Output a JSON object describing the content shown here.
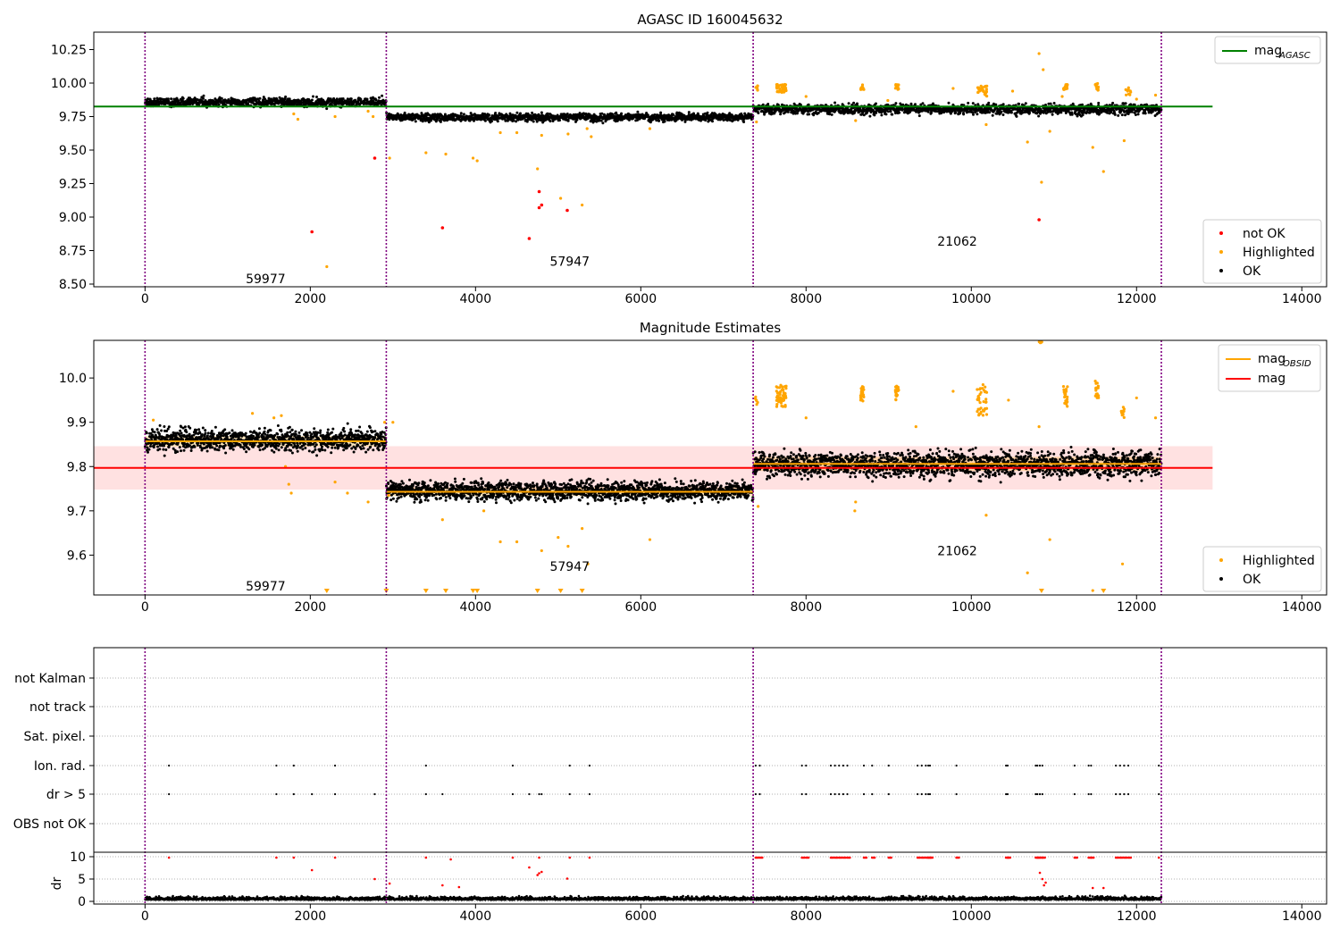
{
  "colors": {
    "ok": "#000000",
    "not_ok": "#ff0000",
    "highlighted": "#ffa500",
    "mag_agasc": "#008000",
    "mag_obsid": "#ffa500",
    "mag": "#ff0000",
    "mag_band": "#ffc8c8",
    "obsid_line": "#800080",
    "grid": "#b0b0b0"
  },
  "chart_data": [
    {
      "type": "scatter",
      "title": "AGASC ID 160045632",
      "xlim": [
        -620,
        14300
      ],
      "ylim": [
        8.48,
        10.38
      ],
      "xticks": [
        0,
        2000,
        4000,
        6000,
        8000,
        10000,
        12000,
        14000
      ],
      "yticks": [
        8.5,
        8.75,
        9.0,
        9.25,
        9.5,
        9.75,
        10.0,
        10.25
      ],
      "ytick_labels": [
        "8.50",
        "8.75",
        "9.00",
        "9.25",
        "9.50",
        "9.75",
        "10.00",
        "10.25"
      ],
      "obsid_boundaries": [
        0,
        2920,
        7360,
        12300
      ],
      "obsid_labels": [
        {
          "text": "59977",
          "x": 1460,
          "y": 8.54
        },
        {
          "text": "57947",
          "x": 5140,
          "y": 8.67
        },
        {
          "text": "21062",
          "x": 9830,
          "y": 8.82
        }
      ],
      "mag_agasc": 9.825,
      "mag_agasc_x": [
        -620,
        12920
      ],
      "legend_upper": [
        {
          "label": "mag",
          "sub": "AGASC",
          "kind": "line",
          "color": "#008000"
        }
      ],
      "legend_lower": [
        {
          "label": "not OK",
          "kind": "dot",
          "color": "#ff0000"
        },
        {
          "label": "Highlighted",
          "kind": "dot",
          "color": "#ffa500"
        },
        {
          "label": "OK",
          "kind": "dot",
          "color": "#000000"
        }
      ],
      "ok_segments": [
        {
          "x0": 0,
          "x1": 2920,
          "mean": 9.857,
          "spread": 0.045
        },
        {
          "x0": 2920,
          "x1": 7360,
          "mean": 9.745,
          "spread": 0.04
        },
        {
          "x0": 7360,
          "x1": 12300,
          "mean": 9.805,
          "spread": 0.055
        }
      ],
      "highlighted_points": [
        [
          1800,
          9.77
        ],
        [
          1850,
          9.73
        ],
        [
          2300,
          9.75
        ],
        [
          2700,
          9.79
        ],
        [
          2760,
          9.75
        ],
        [
          2960,
          9.44
        ],
        [
          3400,
          9.48
        ],
        [
          3640,
          9.47
        ],
        [
          3970,
          9.44
        ],
        [
          4020,
          9.42
        ],
        [
          4300,
          9.63
        ],
        [
          4500,
          9.63
        ],
        [
          4750,
          9.36
        ],
        [
          4800,
          9.61
        ],
        [
          5030,
          9.14
        ],
        [
          5120,
          9.62
        ],
        [
          5290,
          9.09
        ],
        [
          5350,
          9.66
        ],
        [
          5400,
          9.6
        ],
        [
          2200,
          8.63
        ],
        [
          6110,
          9.66
        ],
        [
          7400,
          9.71
        ],
        [
          8600,
          9.72
        ],
        [
          8000,
          9.9
        ],
        [
          8990,
          9.87
        ],
        [
          10180,
          9.69
        ],
        [
          10500,
          9.94
        ],
        [
          10680,
          9.56
        ],
        [
          10850,
          9.26
        ],
        [
          10950,
          9.64
        ],
        [
          11470,
          9.52
        ],
        [
          11600,
          9.34
        ],
        [
          11850,
          9.57
        ],
        [
          12230,
          9.91
        ],
        [
          10820,
          10.22
        ],
        [
          10870,
          10.1
        ],
        [
          12000,
          9.88
        ],
        [
          11100,
          9.9
        ],
        [
          9780,
          9.96
        ]
      ],
      "highlighted_clusters": [
        {
          "x": 7700,
          "y": 9.96,
          "n": 40,
          "dx": 60,
          "dy": 0.03
        },
        {
          "x": 8680,
          "y": 9.97,
          "n": 18,
          "dx": 20,
          "dy": 0.02
        },
        {
          "x": 9100,
          "y": 9.97,
          "n": 18,
          "dx": 20,
          "dy": 0.02
        },
        {
          "x": 10130,
          "y": 9.94,
          "n": 30,
          "dx": 60,
          "dy": 0.04
        },
        {
          "x": 11140,
          "y": 9.97,
          "n": 20,
          "dx": 25,
          "dy": 0.02
        },
        {
          "x": 11520,
          "y": 9.97,
          "n": 14,
          "dx": 20,
          "dy": 0.03
        },
        {
          "x": 11900,
          "y": 9.94,
          "n": 10,
          "dx": 30,
          "dy": 0.03
        },
        {
          "x": 7400,
          "y": 9.96,
          "n": 6,
          "dx": 15,
          "dy": 0.02
        }
      ],
      "not_ok_points": [
        [
          2780,
          9.44
        ],
        [
          2020,
          8.89
        ],
        [
          3600,
          8.92
        ],
        [
          4650,
          8.84
        ],
        [
          4770,
          9.19
        ],
        [
          4770,
          9.07
        ],
        [
          4800,
          9.09
        ],
        [
          5110,
          9.05
        ],
        [
          10820,
          8.98
        ]
      ]
    },
    {
      "type": "scatter",
      "title": "Magnitude Estimates",
      "xlim": [
        -620,
        14300
      ],
      "ylim": [
        9.51,
        10.085
      ],
      "xticks": [
        0,
        2000,
        4000,
        6000,
        8000,
        10000,
        12000,
        14000
      ],
      "yticks": [
        9.6,
        9.7,
        9.8,
        9.9,
        10.0
      ],
      "ytick_labels": [
        "9.6",
        "9.7",
        "9.8",
        "9.9",
        "10.0"
      ],
      "obsid_boundaries": [
        0,
        2920,
        7360,
        12300
      ],
      "obsid_labels": [
        {
          "text": "59977",
          "x": 1460,
          "y": 9.53
        },
        {
          "text": "57947",
          "x": 5140,
          "y": 9.575
        },
        {
          "text": "21062",
          "x": 9830,
          "y": 9.61
        }
      ],
      "mag": 9.797,
      "mag_band": [
        9.748,
        9.846
      ],
      "mag_x": [
        -620,
        12920
      ],
      "mag_obsid": [
        {
          "x0": 0,
          "x1": 2920,
          "value": 9.857,
          "band": [
            9.845,
            9.869
          ]
        },
        {
          "x0": 2920,
          "x1": 7360,
          "value": 9.743,
          "band": [
            9.733,
            9.753
          ]
        },
        {
          "x0": 7360,
          "x1": 12300,
          "value": 9.806,
          "band": [
            9.79,
            9.822
          ]
        }
      ],
      "legend_upper": [
        {
          "label": "mag",
          "sub": "OBSID",
          "kind": "line",
          "color": "#ffa500"
        },
        {
          "label": "mag",
          "sub": "",
          "kind": "line",
          "color": "#ff0000"
        }
      ],
      "legend_lower": [
        {
          "label": "Highlighted",
          "kind": "dot",
          "color": "#ffa500"
        },
        {
          "label": "OK",
          "kind": "dot",
          "color": "#000000"
        }
      ],
      "ok_segments": [
        {
          "x0": 0,
          "x1": 2920,
          "mean": 9.86,
          "spread": 0.035
        },
        {
          "x0": 2920,
          "x1": 7360,
          "mean": 9.745,
          "spread": 0.03
        },
        {
          "x0": 7360,
          "x1": 12300,
          "mean": 9.805,
          "spread": 0.04
        }
      ],
      "highlighted_points": [
        [
          100,
          9.905
        ],
        [
          1300,
          9.92
        ],
        [
          1560,
          9.91
        ],
        [
          1650,
          9.915
        ],
        [
          1700,
          9.8
        ],
        [
          1740,
          9.76
        ],
        [
          1770,
          9.74
        ],
        [
          2300,
          9.765
        ],
        [
          2450,
          9.74
        ],
        [
          2700,
          9.72
        ],
        [
          2900,
          9.9
        ],
        [
          2950,
          9.735
        ],
        [
          3000,
          9.9
        ],
        [
          3600,
          9.68
        ],
        [
          4100,
          9.7
        ],
        [
          4300,
          9.63
        ],
        [
          4500,
          9.63
        ],
        [
          4800,
          9.61
        ],
        [
          5000,
          9.64
        ],
        [
          5120,
          9.62
        ],
        [
          5290,
          9.66
        ],
        [
          5360,
          9.58
        ],
        [
          6110,
          9.635
        ],
        [
          7420,
          9.71
        ],
        [
          8000,
          9.91
        ],
        [
          8600,
          9.72
        ],
        [
          8590,
          9.7
        ],
        [
          10180,
          9.69
        ],
        [
          10680,
          9.56
        ],
        [
          10820,
          9.89
        ],
        [
          10950,
          9.635
        ],
        [
          11470,
          9.52
        ],
        [
          11830,
          9.58
        ],
        [
          11850,
          9.93
        ],
        [
          12000,
          9.955
        ],
        [
          12230,
          9.91
        ],
        [
          10450,
          9.95
        ],
        [
          9780,
          9.97
        ],
        [
          9330,
          9.89
        ]
      ],
      "highlighted_clusters": [
        {
          "x": 7700,
          "y": 9.96,
          "n": 50,
          "dx": 60,
          "dy": 0.025
        },
        {
          "x": 8680,
          "y": 9.965,
          "n": 22,
          "dx": 20,
          "dy": 0.02
        },
        {
          "x": 9100,
          "y": 9.965,
          "n": 22,
          "dx": 20,
          "dy": 0.02
        },
        {
          "x": 10130,
          "y": 9.95,
          "n": 40,
          "dx": 60,
          "dy": 0.035
        },
        {
          "x": 11140,
          "y": 9.96,
          "n": 24,
          "dx": 25,
          "dy": 0.025
        },
        {
          "x": 11520,
          "y": 9.975,
          "n": 18,
          "dx": 20,
          "dy": 0.02
        },
        {
          "x": 11830,
          "y": 9.92,
          "n": 10,
          "dx": 20,
          "dy": 0.015
        },
        {
          "x": 7400,
          "y": 9.95,
          "n": 6,
          "dx": 15,
          "dy": 0.01
        },
        {
          "x": 10840,
          "y": 10.08,
          "n": 6,
          "dx": 25,
          "dy": 0.002
        }
      ],
      "offscale_markers": [
        2200,
        2920,
        3400,
        3640,
        3970,
        4020,
        4750,
        5030,
        5290,
        10850,
        11600
      ]
    },
    {
      "type": "scatter",
      "title": "",
      "xlim": [
        -620,
        14300
      ],
      "xticks": [
        0,
        2000,
        4000,
        6000,
        8000,
        10000,
        12000,
        14000
      ],
      "obsid_boundaries": [
        0,
        2920,
        7360,
        12300
      ],
      "flag_labels": [
        "not Kalman",
        "not track",
        "Sat. pixel.",
        "Ion. rad.",
        "dr > 5",
        "OBS not OK"
      ],
      "flag_points": {
        "Ion. rad.": [
          290,
          1590,
          1800,
          2300,
          3400,
          4450,
          5140,
          5380,
          7390,
          7440,
          7950,
          8000,
          8300,
          8350,
          8400,
          8450,
          8500,
          8700,
          8800,
          9000,
          9350,
          9400,
          9450,
          9480,
          9500,
          9820,
          10420,
          10440,
          10780,
          10800,
          10830,
          10860,
          11250,
          11420,
          11450,
          11750,
          11800,
          11850,
          11900,
          12270
        ],
        "dr > 5": [
          290,
          1590,
          1800,
          2020,
          2300,
          2780,
          3400,
          3600,
          4450,
          4650,
          4770,
          4800,
          5140,
          5380,
          7390,
          7440,
          7950,
          8000,
          8300,
          8350,
          8400,
          8450,
          8500,
          8700,
          8800,
          9000,
          9350,
          9400,
          9450,
          9480,
          9500,
          9820,
          10420,
          10440,
          10780,
          10800,
          10830,
          10860,
          11250,
          11420,
          11450,
          11750,
          11800,
          11850,
          11900,
          12270
        ]
      },
      "dr_panel": {
        "ylabel": "dr",
        "ylim": [
          -0.6,
          11
        ],
        "yticks": [
          0,
          5,
          10
        ],
        "ytick_labels": [
          "0",
          "5",
          "10"
        ],
        "ok_mean": 0.5,
        "ok_spread": 0.9,
        "red_points": [
          [
            290,
            9.8
          ],
          [
            1590,
            9.8
          ],
          [
            1800,
            9.8
          ],
          [
            2020,
            7.0
          ],
          [
            2300,
            9.8
          ],
          [
            2780,
            5.0
          ],
          [
            2960,
            4.0
          ],
          [
            3400,
            9.8
          ],
          [
            3600,
            3.6
          ],
          [
            3700,
            9.4
          ],
          [
            3800,
            3.2
          ],
          [
            4450,
            9.8
          ],
          [
            4650,
            7.6
          ],
          [
            4770,
            9.8
          ],
          [
            4770,
            6.3
          ],
          [
            4800,
            6.6
          ],
          [
            4750,
            5.9
          ],
          [
            5140,
            9.8
          ],
          [
            5110,
            5.1
          ],
          [
            5380,
            9.8
          ],
          [
            10830,
            6.4
          ],
          [
            10860,
            5.0
          ],
          [
            10880,
            3.6
          ],
          [
            10900,
            4.2
          ],
          [
            11470,
            3.0
          ],
          [
            11600,
            3.0
          ],
          [
            12270,
            9.8
          ]
        ],
        "red_clusters": [
          7390,
          7440,
          7950,
          8000,
          8300,
          8350,
          8400,
          8450,
          8500,
          8700,
          8800,
          9000,
          9350,
          9400,
          9450,
          9480,
          9500,
          9820,
          10420,
          10440,
          10780,
          10800,
          10830,
          10860,
          11250,
          11420,
          11450,
          11750,
          11800,
          11850,
          11900
        ]
      }
    }
  ]
}
